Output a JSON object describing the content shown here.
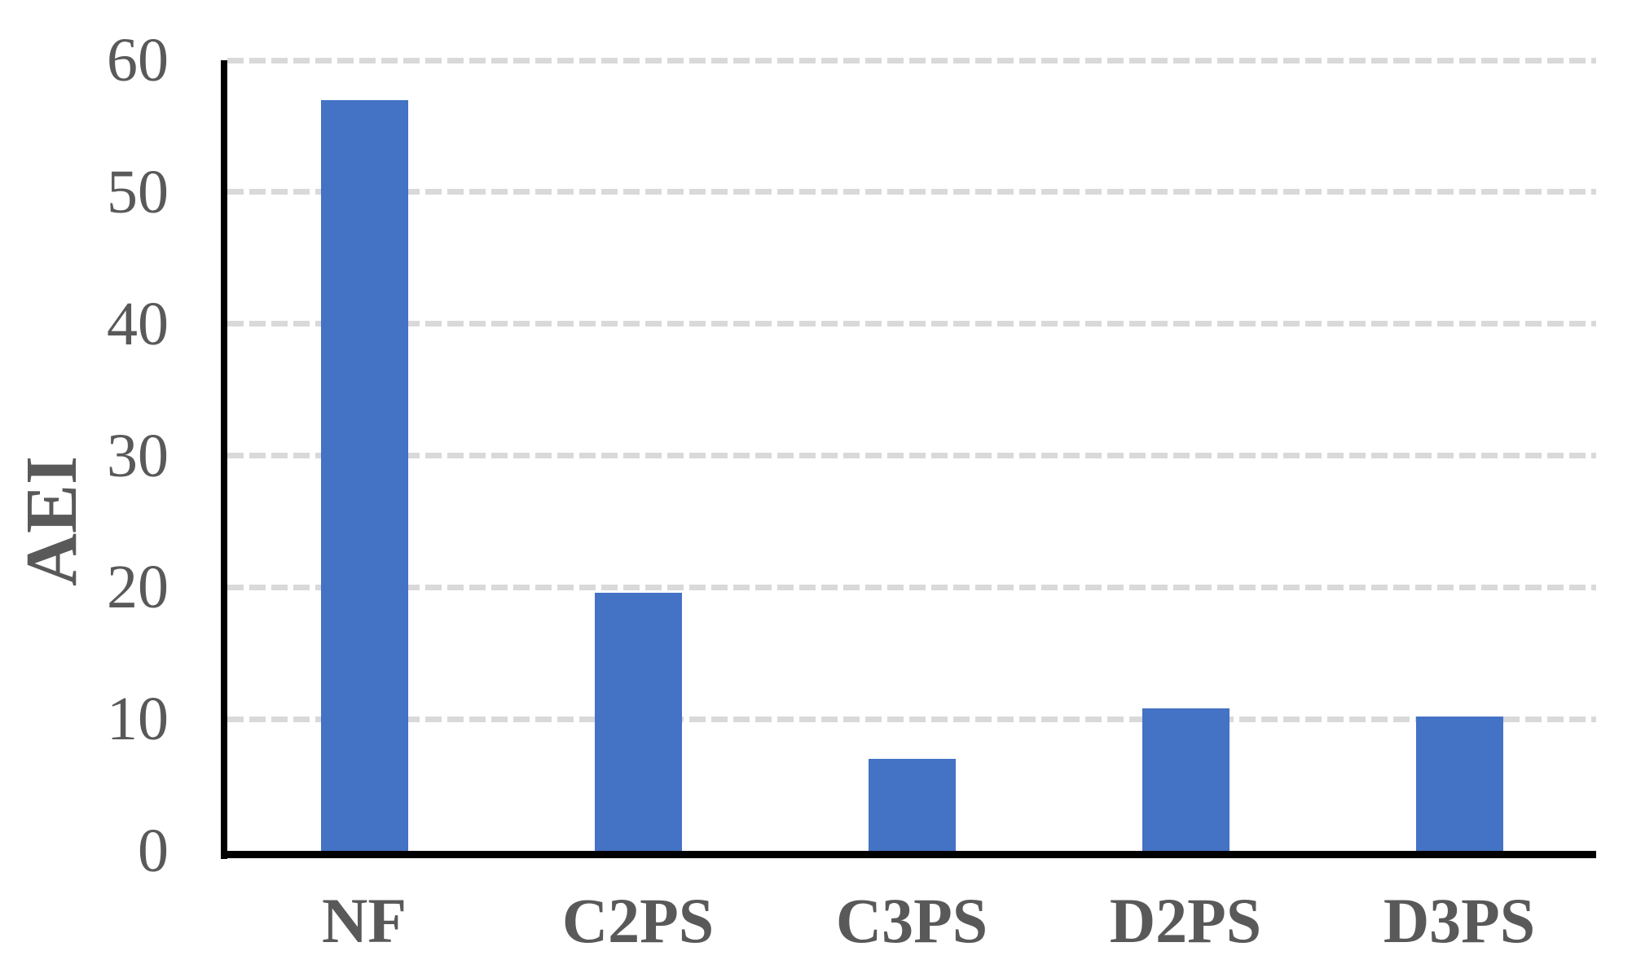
{
  "chart_data": {
    "type": "bar",
    "title": "",
    "xlabel": "",
    "ylabel": "AEI",
    "categories": [
      "NF",
      "C2PS",
      "C3PS",
      "D2PS",
      "D3PS"
    ],
    "values": [
      57,
      19.6,
      7,
      10.8,
      10.2
    ],
    "series": [
      {
        "name": "AEI",
        "values": [
          57,
          19.6,
          7,
          10.8,
          10.2
        ]
      }
    ],
    "ylim": [
      0,
      60
    ],
    "yticks": [
      0,
      10,
      20,
      30,
      40,
      50,
      60
    ],
    "grid": "horizontal-dashed",
    "legend_position": "none",
    "colors": {
      "bar": "#4472C4",
      "grid": "#D9D9D9",
      "text": "#595959",
      "axis": "#000000"
    }
  }
}
